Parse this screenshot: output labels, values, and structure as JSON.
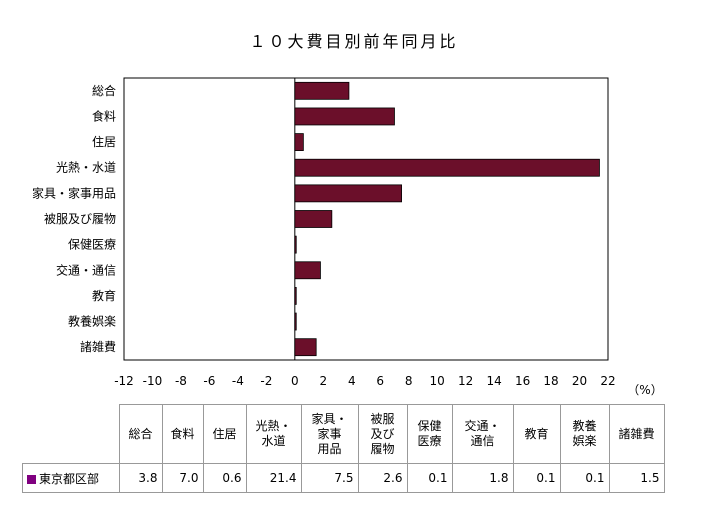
{
  "chart_data": {
    "type": "bar",
    "orientation": "horizontal",
    "title": "１０大費目別前年同月比",
    "categories": [
      "総合",
      "食料",
      "住居",
      "光熱・水道",
      "家具・家事用品",
      "被服及び履物",
      "保健医療",
      "交通・通信",
      "教育",
      "教養娯楽",
      "諸雑費"
    ],
    "series": [
      {
        "name": "東京都区部",
        "values": [
          3.8,
          7.0,
          0.6,
          21.4,
          7.5,
          2.6,
          0.1,
          1.8,
          0.1,
          0.1,
          1.5
        ]
      }
    ],
    "xlim": [
      -12,
      22
    ],
    "xticks": [
      "-12",
      "-10",
      "-8",
      "-6",
      "-4",
      "-2",
      "0",
      "2",
      "4",
      "6",
      "8",
      "10",
      "12",
      "14",
      "16",
      "18",
      "20",
      "22"
    ],
    "unit": "（%）",
    "grid": false,
    "bar_color": "#6b0f2a",
    "table_headers": [
      "総合",
      "食料",
      "住居",
      "光熱・\n水道",
      "家具・\n家事\n用品",
      "被服\n及び\n履物",
      "保健\n医療",
      "交通・\n通信",
      "教育",
      "教養\n娯楽",
      "諸雑費"
    ],
    "table_values": [
      "3.8",
      "7.0",
      "0.6",
      "21.4",
      "7.5",
      "2.6",
      "0.1",
      "1.8",
      "0.1",
      "0.1",
      "1.5"
    ],
    "series_color": "#800080"
  }
}
